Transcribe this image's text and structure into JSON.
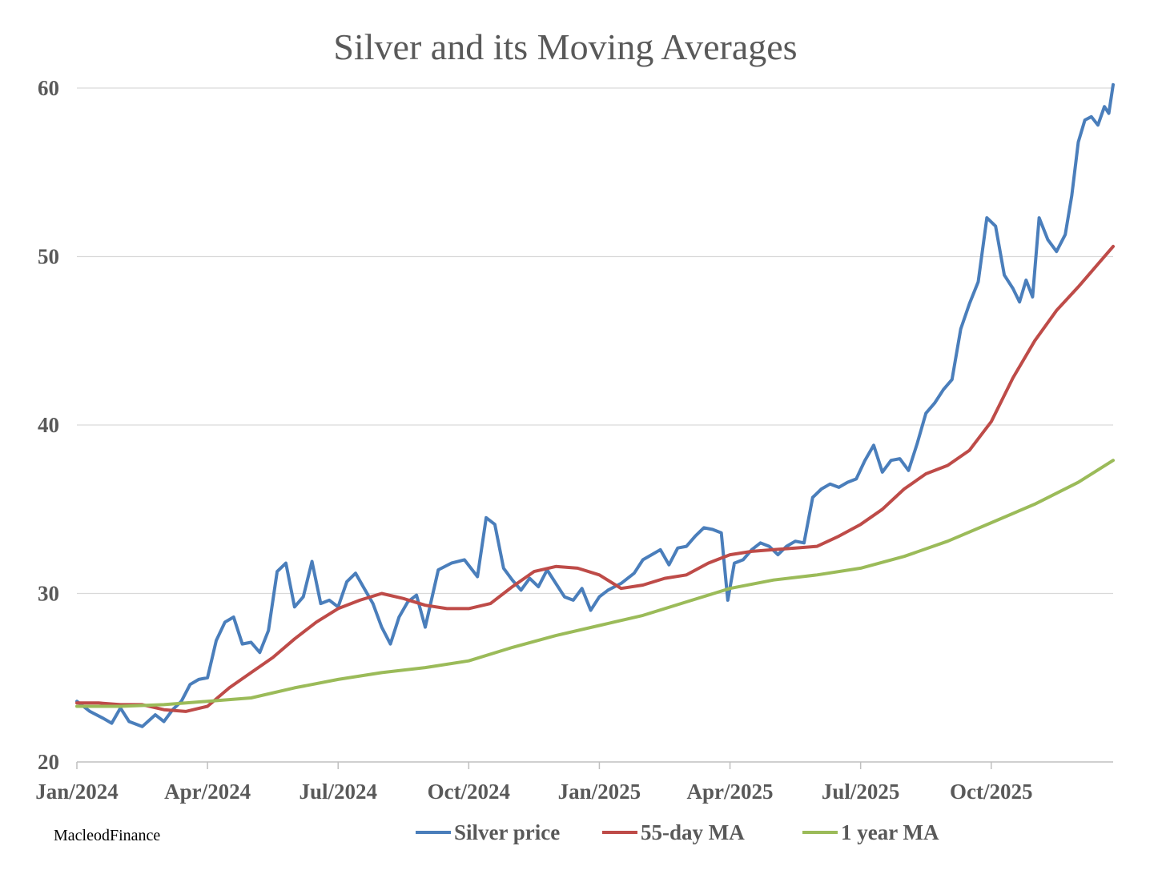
{
  "chart_data": {
    "type": "line",
    "title": "Silver and its Moving Averages",
    "xlabel": "",
    "ylabel": "",
    "ylim": [
      20,
      60
    ],
    "y_ticks": [
      20,
      30,
      40,
      50,
      60
    ],
    "x_range": [
      0,
      23.8
    ],
    "x_tick_labels": [
      "Jan/2024",
      "Apr/2024",
      "Jul/2024",
      "Oct/2024",
      "Jan/2025",
      "Apr/2025",
      "Jul/2025",
      "Oct/2025"
    ],
    "x_tick_positions": [
      0,
      3,
      6,
      9,
      12,
      15,
      18,
      21
    ],
    "x_unit": "months since Jan 2024",
    "grid": true,
    "legend_position": "bottom",
    "credit": "MacleodFinance",
    "series": [
      {
        "name": "Silver price",
        "color": "#4a7ebb",
        "x": [
          0,
          0.3,
          0.6,
          0.8,
          1.0,
          1.2,
          1.5,
          1.8,
          2.0,
          2.2,
          2.4,
          2.6,
          2.8,
          3.0,
          3.2,
          3.4,
          3.6,
          3.8,
          4.0,
          4.2,
          4.4,
          4.6,
          4.8,
          5.0,
          5.2,
          5.4,
          5.6,
          5.8,
          6.0,
          6.2,
          6.4,
          6.6,
          6.8,
          7.0,
          7.2,
          7.4,
          7.6,
          7.8,
          8.0,
          8.3,
          8.6,
          8.9,
          9.2,
          9.4,
          9.6,
          9.8,
          10.0,
          10.2,
          10.4,
          10.6,
          10.8,
          11.0,
          11.2,
          11.4,
          11.6,
          11.8,
          12.0,
          12.2,
          12.5,
          12.8,
          13.0,
          13.2,
          13.4,
          13.6,
          13.8,
          14.0,
          14.2,
          14.4,
          14.6,
          14.8,
          14.95,
          15.1,
          15.3,
          15.5,
          15.7,
          15.9,
          16.1,
          16.3,
          16.5,
          16.7,
          16.9,
          17.1,
          17.3,
          17.5,
          17.7,
          17.9,
          18.1,
          18.3,
          18.5,
          18.7,
          18.9,
          19.1,
          19.3,
          19.5,
          19.7,
          19.9,
          20.1,
          20.3,
          20.5,
          20.7,
          20.9,
          21.1,
          21.3,
          21.5,
          21.65,
          21.8,
          21.95,
          22.1,
          22.3,
          22.5,
          22.7,
          22.85,
          23.0,
          23.15,
          23.3,
          23.45,
          23.6,
          23.7,
          23.8
        ],
        "values": [
          23.6,
          23.0,
          22.6,
          22.3,
          23.2,
          22.4,
          22.1,
          22.8,
          22.4,
          23.1,
          23.6,
          24.6,
          24.9,
          25.0,
          27.2,
          28.3,
          28.6,
          27.0,
          27.1,
          26.5,
          27.8,
          31.3,
          31.8,
          29.2,
          29.8,
          31.9,
          29.4,
          29.6,
          29.2,
          30.7,
          31.2,
          30.3,
          29.4,
          28.0,
          27.0,
          28.6,
          29.5,
          29.9,
          28.0,
          31.4,
          31.8,
          32.0,
          31.0,
          34.5,
          34.1,
          31.5,
          30.8,
          30.2,
          30.9,
          30.4,
          31.4,
          30.6,
          29.8,
          29.6,
          30.3,
          29.0,
          29.8,
          30.2,
          30.6,
          31.2,
          32.0,
          32.3,
          32.6,
          31.7,
          32.7,
          32.8,
          33.4,
          33.9,
          33.8,
          33.6,
          29.6,
          31.8,
          32.0,
          32.6,
          33.0,
          32.8,
          32.3,
          32.8,
          33.1,
          33.0,
          35.7,
          36.2,
          36.5,
          36.3,
          36.6,
          36.8,
          37.9,
          38.8,
          37.2,
          37.9,
          38.0,
          37.3,
          38.9,
          40.7,
          41.3,
          42.1,
          42.7,
          45.7,
          47.2,
          48.5,
          52.3,
          51.8,
          48.9,
          48.1,
          47.3,
          48.6,
          47.6,
          52.3,
          51.0,
          50.3,
          51.3,
          53.6,
          56.8,
          58.1,
          58.3,
          57.8,
          58.9,
          58.5,
          60.2
        ]
      },
      {
        "name": "55-day MA",
        "color": "#be4b48",
        "x": [
          0,
          0.5,
          1.0,
          1.5,
          2.0,
          2.5,
          3.0,
          3.5,
          4.0,
          4.5,
          5.0,
          5.5,
          6.0,
          6.5,
          7.0,
          7.5,
          8.0,
          8.5,
          9.0,
          9.5,
          10.0,
          10.5,
          11.0,
          11.5,
          12.0,
          12.5,
          13.0,
          13.5,
          14.0,
          14.5,
          15.0,
          15.5,
          16.0,
          16.5,
          17.0,
          17.5,
          18.0,
          18.5,
          19.0,
          19.5,
          20.0,
          20.5,
          21.0,
          21.5,
          22.0,
          22.5,
          23.0,
          23.5,
          23.8
        ],
        "values": [
          23.5,
          23.5,
          23.4,
          23.4,
          23.1,
          23.0,
          23.3,
          24.4,
          25.3,
          26.2,
          27.3,
          28.3,
          29.1,
          29.6,
          30.0,
          29.7,
          29.3,
          29.1,
          29.1,
          29.4,
          30.4,
          31.3,
          31.6,
          31.5,
          31.1,
          30.3,
          30.5,
          30.9,
          31.1,
          31.8,
          32.3,
          32.5,
          32.6,
          32.7,
          32.8,
          33.4,
          34.1,
          35.0,
          36.2,
          37.1,
          37.6,
          38.5,
          40.2,
          42.8,
          45.0,
          46.8,
          48.2,
          49.7,
          50.6
        ]
      },
      {
        "name": "1 year MA",
        "color": "#9bbb59",
        "x": [
          0,
          1.0,
          2.0,
          3.0,
          4.0,
          5.0,
          6.0,
          7.0,
          8.0,
          9.0,
          10.0,
          11.0,
          12.0,
          13.0,
          14.0,
          15.0,
          16.0,
          17.0,
          18.0,
          19.0,
          20.0,
          21.0,
          22.0,
          23.0,
          23.8
        ],
        "values": [
          23.3,
          23.3,
          23.4,
          23.6,
          23.8,
          24.4,
          24.9,
          25.3,
          25.6,
          26.0,
          26.8,
          27.5,
          28.1,
          28.7,
          29.5,
          30.3,
          30.8,
          31.1,
          31.5,
          32.2,
          33.1,
          34.2,
          35.3,
          36.6,
          37.9
        ]
      }
    ]
  }
}
